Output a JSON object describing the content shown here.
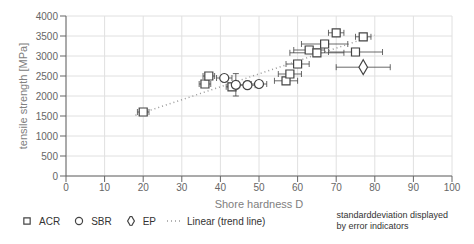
{
  "chart_data": {
    "type": "scatter",
    "xlabel": "Shore hardness D",
    "ylabel": "tensile strength [MPa]",
    "xlim": [
      0,
      100
    ],
    "ylim": [
      0,
      4000
    ],
    "xticks": [
      0,
      10,
      20,
      30,
      40,
      50,
      60,
      70,
      80,
      90,
      100
    ],
    "yticks": [
      0,
      500,
      1000,
      1500,
      2000,
      2500,
      3000,
      3500,
      4000
    ],
    "grid": true,
    "legend": "bottom",
    "annotation": "standarddeviation displayed\nby error indicators",
    "series": [
      {
        "name": "ACR",
        "type": "scatter",
        "marker": "square",
        "color": "#444444",
        "x": [
          20,
          36,
          37,
          43,
          57,
          58,
          60,
          63,
          65,
          67,
          70,
          75,
          77
        ],
        "values": [
          1600,
          2300,
          2500,
          2230,
          2380,
          2550,
          2800,
          3150,
          3080,
          3300,
          3580,
          3100,
          3480
        ],
        "x_error": [
          1.5,
          1.5,
          1.5,
          1.5,
          3,
          3,
          3,
          4,
          7,
          6,
          2,
          7,
          2
        ],
        "y_error": [
          50,
          70,
          70,
          90,
          70,
          70,
          90,
          90,
          90,
          90,
          70,
          90,
          70
        ]
      },
      {
        "name": "SBR",
        "type": "scatter",
        "marker": "circle",
        "color": "#444444",
        "x": [
          41,
          44,
          47,
          50
        ],
        "values": [
          2450,
          2280,
          2270,
          2300
        ],
        "x_error": [
          2,
          2,
          2,
          2
        ],
        "y_error": [
          70,
          280,
          70,
          70
        ]
      },
      {
        "name": "EP",
        "type": "scatter",
        "marker": "diamond",
        "color": "#444444",
        "x": [
          77
        ],
        "values": [
          2720
        ],
        "x_error": [
          7
        ],
        "y_error": [
          60
        ]
      },
      {
        "name": "Linear (trend line)",
        "type": "line",
        "line_style": "dotted",
        "color": "#999999",
        "x": [
          18,
          80
        ],
        "values": [
          1520,
          3520
        ]
      }
    ]
  }
}
